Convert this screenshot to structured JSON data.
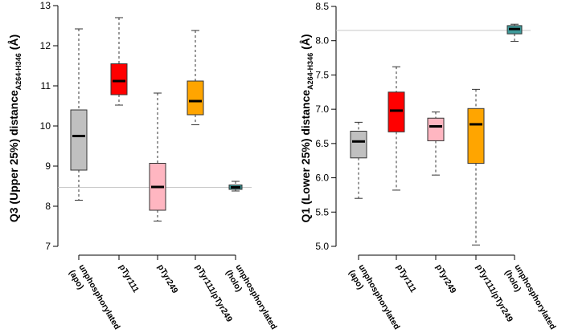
{
  "chart_data": [
    {
      "type": "box",
      "id": "q3",
      "ylabel_main": "Q3 (Upper 25%) distance",
      "ylabel_sub": "A264-H346",
      "ylabel_unit": "(Å)",
      "ylim": [
        7,
        13
      ],
      "yticks": [
        7,
        8,
        9,
        10,
        11,
        12,
        13
      ],
      "reference_line": 8.47,
      "categories": [
        {
          "label": "unphosphorylated (apo)",
          "lines": [
            "unphosphorylated",
            "(apo)"
          ],
          "color": "#c0c0c0",
          "whisker_low": 8.15,
          "q1": 8.9,
          "median": 9.75,
          "q3": 10.4,
          "whisker_high": 12.42
        },
        {
          "label": "pTyr111",
          "lines": [
            "pTyr111"
          ],
          "color": "#ff0000",
          "whisker_low": 10.52,
          "q1": 10.78,
          "median": 11.12,
          "q3": 11.55,
          "whisker_high": 12.7
        },
        {
          "label": "pTyr249",
          "lines": [
            "pTyr249"
          ],
          "color": "#ffb6c1",
          "whisker_low": 7.63,
          "q1": 7.9,
          "median": 8.48,
          "q3": 9.07,
          "whisker_high": 10.82
        },
        {
          "label": "pTyr111/pTyr249",
          "lines": [
            "pTyr111/pTyr249"
          ],
          "color": "#ffa500",
          "whisker_low": 10.03,
          "q1": 10.28,
          "median": 10.62,
          "q3": 11.12,
          "whisker_high": 12.38
        },
        {
          "label": "unphosphorylated (holo)",
          "lines": [
            "unphosphorylated",
            "(holo)"
          ],
          "color": "#3f9b9b",
          "whisker_low": 8.38,
          "q1": 8.42,
          "median": 8.47,
          "q3": 8.53,
          "whisker_high": 8.62
        }
      ]
    },
    {
      "type": "box",
      "id": "q1",
      "ylabel_main": "Q1 (Lower 25%) distance",
      "ylabel_sub": "A264-H346",
      "ylabel_unit": "(Å)",
      "ylim": [
        5.0,
        8.5
      ],
      "yticks": [
        5.0,
        5.5,
        6.0,
        6.5,
        7.0,
        7.5,
        8.0,
        8.5
      ],
      "reference_line": 8.15,
      "categories": [
        {
          "label": "unphosphorylated (apo)",
          "lines": [
            "unphosphorylated",
            "(apo)"
          ],
          "color": "#c0c0c0",
          "whisker_low": 5.7,
          "q1": 6.29,
          "median": 6.53,
          "q3": 6.68,
          "whisker_high": 6.81
        },
        {
          "label": "pTyr111",
          "lines": [
            "pTyr111"
          ],
          "color": "#ff0000",
          "whisker_low": 5.82,
          "q1": 6.67,
          "median": 6.98,
          "q3": 7.25,
          "whisker_high": 7.62
        },
        {
          "label": "pTyr249",
          "lines": [
            "pTyr249"
          ],
          "color": "#ffb6c1",
          "whisker_low": 6.04,
          "q1": 6.54,
          "median": 6.75,
          "q3": 6.87,
          "whisker_high": 6.96
        },
        {
          "label": "pTyr111/pTyr249",
          "lines": [
            "pTyr111/pTyr249"
          ],
          "color": "#ffa500",
          "whisker_low": 5.02,
          "q1": 6.21,
          "median": 6.78,
          "q3": 7.01,
          "whisker_high": 7.29
        },
        {
          "label": "unphosphorylated (holo)",
          "lines": [
            "unphosphorylated",
            "(holo)"
          ],
          "color": "#3f9b9b",
          "whisker_low": 7.99,
          "q1": 8.1,
          "median": 8.17,
          "q3": 8.22,
          "whisker_high": 8.24
        }
      ]
    }
  ]
}
